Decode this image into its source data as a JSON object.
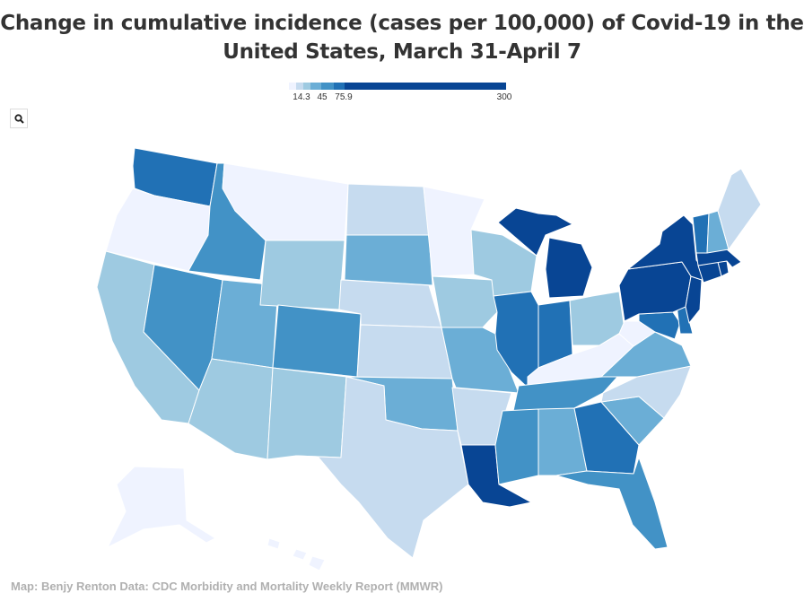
{
  "title": "Change in cumulative incidence (cases per 100,000) of Covid-19 in the United States, March 31-April 7",
  "legend": {
    "labels": [
      "14.3",
      "45",
      "75.9",
      "300"
    ],
    "colors": [
      "#eff3ff",
      "#c6dbef",
      "#9ecae1",
      "#6baed6",
      "#4292c6",
      "#2171b5",
      "#084594"
    ]
  },
  "search": {
    "icon": "search-icon"
  },
  "footer": "Map: Benjy Renton Data: CDC Morbidity and Mortality Weekly Report (MMWR)",
  "states": {
    "WA": 6,
    "OR": 1,
    "CA": 3,
    "ID": 5,
    "NV": 5,
    "UT": 4,
    "AZ": 3,
    "MT": 1,
    "WY": 3,
    "CO": 5,
    "NM": 3,
    "ND": 2,
    "SD": 4,
    "NE": 2,
    "KS": 2,
    "OK": 4,
    "TX": 2,
    "MN": 1,
    "IA": 3,
    "MO": 4,
    "AR": 2,
    "LA": 7,
    "WI": 3,
    "IL": 6,
    "MI": 7,
    "IN": 6,
    "OH": 3,
    "KY": 1,
    "TN": 5,
    "MS": 5,
    "AL": 4,
    "GA": 6,
    "FL": 5,
    "SC": 4,
    "NC": 2,
    "VA": 4,
    "WV": 1,
    "MD": 6,
    "DE": 6,
    "PA": 7,
    "NJ": 7,
    "NY": 7,
    "CT": 7,
    "RI": 7,
    "MA": 7,
    "VT": 6,
    "NH": 4,
    "ME": 2,
    "AK": 1,
    "HI": 1
  }
}
